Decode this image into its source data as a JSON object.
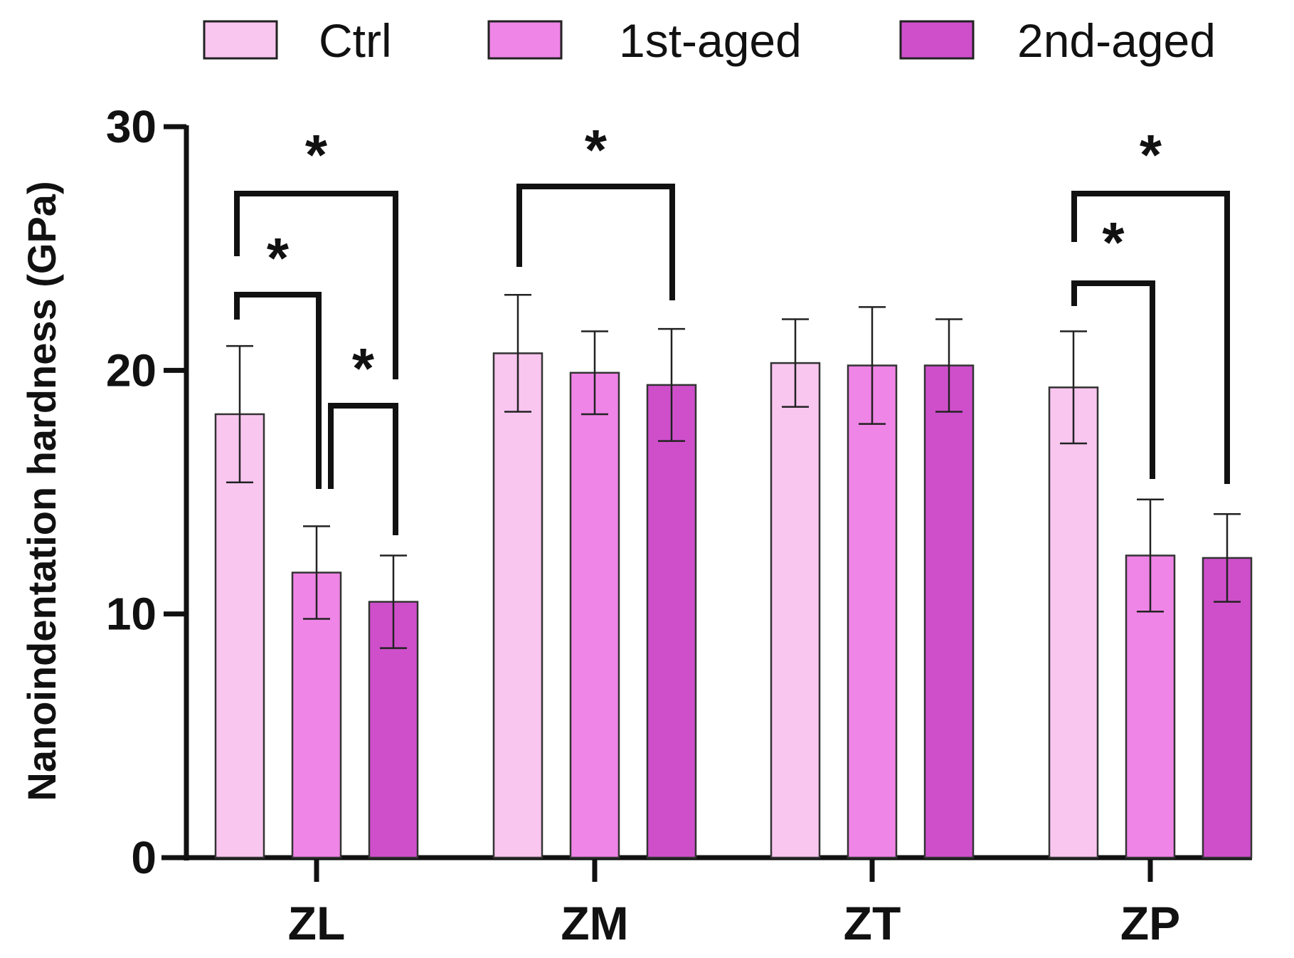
{
  "chart_data": {
    "type": "bar",
    "title": "",
    "xlabel": "",
    "ylabel": "Nanoindentation hardness (GPa)",
    "ylim": [
      0,
      30
    ],
    "yticks": [
      0,
      10,
      20,
      30
    ],
    "grid": false,
    "legend_position": "top",
    "categories": [
      "ZL",
      "ZM",
      "ZT",
      "ZP"
    ],
    "series": [
      {
        "name": "Ctrl",
        "color": "#F9C6F0",
        "values": [
          18.2,
          20.7,
          20.3,
          19.3
        ],
        "errors": [
          2.8,
          2.4,
          1.8,
          2.3
        ]
      },
      {
        "name": "1st-aged",
        "color": "#EF85E6",
        "values": [
          11.7,
          19.9,
          20.2,
          12.4
        ],
        "errors": [
          1.9,
          1.7,
          2.4,
          2.3
        ]
      },
      {
        "name": "2nd-aged",
        "color": "#CF4FCB",
        "values": [
          10.5,
          19.4,
          20.2,
          12.3
        ],
        "errors": [
          1.9,
          2.3,
          1.9,
          1.8
        ]
      }
    ],
    "significance": [
      {
        "category": "ZL",
        "from_series": 0,
        "to_series": 1,
        "label": "*"
      },
      {
        "category": "ZL",
        "from_series": 0,
        "to_series": 2,
        "label": "*"
      },
      {
        "category": "ZL",
        "from_series": 1,
        "to_series": 2,
        "label": "*"
      },
      {
        "category": "ZM",
        "from_series": 0,
        "to_series": 2,
        "label": "*"
      },
      {
        "category": "ZP",
        "from_series": 0,
        "to_series": 1,
        "label": "*"
      },
      {
        "category": "ZP",
        "from_series": 0,
        "to_series": 2,
        "label": "*"
      }
    ]
  }
}
